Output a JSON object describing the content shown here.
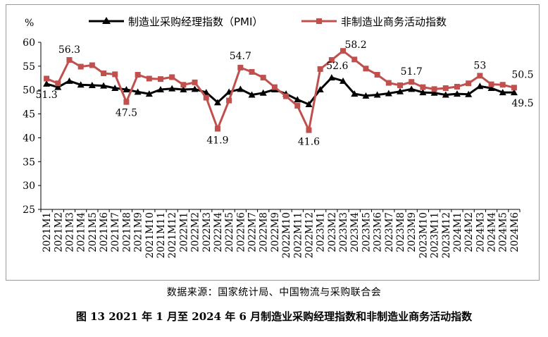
{
  "chart_data": {
    "type": "line",
    "y_unit": "%",
    "ylim": [
      25,
      60
    ],
    "y_ticks": [
      25,
      30,
      35,
      40,
      45,
      50,
      55,
      60
    ],
    "categories": [
      "2021M1",
      "2021M2",
      "2021M3",
      "2021M4",
      "2021M5",
      "2021M6",
      "2021M7",
      "2021M8",
      "2021M9",
      "2021M10",
      "2021M11",
      "2021M12",
      "2022M1",
      "2022M2",
      "2022M3",
      "2022M4",
      "2022M5",
      "2022M6",
      "2022M7",
      "2022M8",
      "2022M9",
      "2022M10",
      "2022M11",
      "2022M12",
      "2023M1",
      "2023M2",
      "2023M3",
      "2023M4",
      "2023M5",
      "2023M6",
      "2023M7",
      "2023M8",
      "2023M9",
      "2023M10",
      "2023M11",
      "2023M12",
      "2024M1",
      "2024M2",
      "2024M3",
      "2024M4",
      "2024M5",
      "2024M6"
    ],
    "series": [
      {
        "name": "制造业采购经理指数（PMI）",
        "color": "#000000",
        "marker": "triangle",
        "values": [
          51.3,
          50.6,
          51.9,
          51.1,
          51.0,
          50.9,
          50.4,
          50.1,
          49.6,
          49.2,
          50.1,
          50.3,
          50.1,
          50.2,
          49.5,
          47.4,
          49.6,
          50.2,
          49.0,
          49.4,
          50.1,
          49.2,
          48.0,
          47.0,
          50.1,
          52.6,
          51.9,
          49.2,
          48.8,
          49.0,
          49.3,
          49.7,
          50.2,
          49.5,
          49.4,
          49.0,
          49.2,
          49.1,
          50.8,
          50.4,
          49.5,
          49.5
        ]
      },
      {
        "name": "非制造业商务活动指数",
        "color": "#c0504d",
        "marker": "square",
        "values": [
          52.4,
          51.4,
          56.3,
          54.9,
          55.2,
          53.5,
          53.3,
          47.5,
          53.2,
          52.4,
          52.3,
          52.7,
          51.1,
          51.6,
          48.4,
          41.9,
          47.8,
          54.7,
          53.8,
          52.6,
          50.6,
          48.7,
          46.7,
          41.6,
          54.4,
          56.3,
          58.2,
          56.4,
          54.5,
          53.2,
          51.5,
          51.0,
          51.7,
          50.6,
          50.2,
          50.4,
          50.7,
          51.4,
          53.0,
          51.2,
          51.1,
          50.5
        ]
      }
    ],
    "annotations": [
      {
        "series": 0,
        "index": 0,
        "text": "51.3"
      },
      {
        "series": 1,
        "index": 2,
        "text": "56.3"
      },
      {
        "series": 1,
        "index": 7,
        "text": "47.5"
      },
      {
        "series": 1,
        "index": 15,
        "text": "41.9"
      },
      {
        "series": 1,
        "index": 17,
        "text": "54.7"
      },
      {
        "series": 1,
        "index": 23,
        "text": "41.6"
      },
      {
        "series": 0,
        "index": 25,
        "text": "52.6"
      },
      {
        "series": 1,
        "index": 26,
        "text": "58.2"
      },
      {
        "series": 1,
        "index": 32,
        "text": "51.7"
      },
      {
        "series": 1,
        "index": 38,
        "text": "53"
      },
      {
        "series": 1,
        "index": 41,
        "text": "50.5"
      },
      {
        "series": 0,
        "index": 41,
        "text": "49.5"
      }
    ],
    "legend_position": "top"
  },
  "source_note": "数据来源：国家统计局、中国物流与采购联合会",
  "caption": "图 13  2021 年 1 月至 2024 年 6 月制造业采购经理指数和非制造业商务活动指数"
}
